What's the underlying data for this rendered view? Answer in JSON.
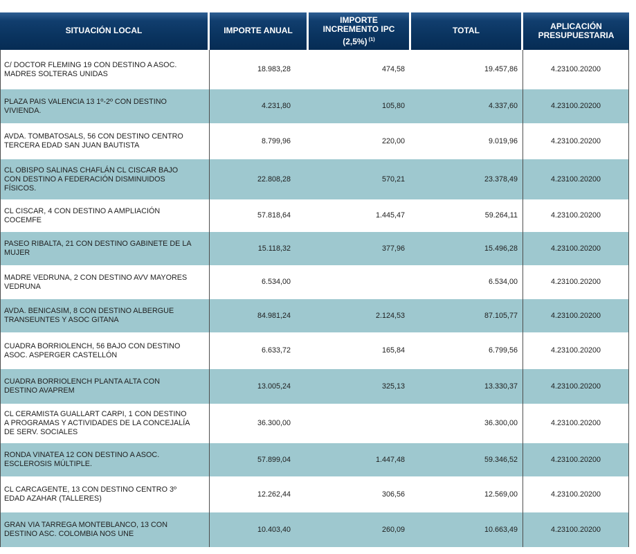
{
  "colors": {
    "header_background": "#0a3460",
    "header_text": "#ffffff",
    "row_alternate_background": "#9ec8cf",
    "row_background": "#ffffff",
    "body_text": "#1e1e1e",
    "grid_line": "#4d4d4d"
  },
  "table": {
    "header": {
      "col1": "SITUACIÓN LOCAL",
      "col2": "IMPORTE ANUAL",
      "col3_line1": "IMPORTE",
      "col3_line2": "INCREMENTO IPC",
      "col3_line3": "(2,5%)",
      "col3_footnote": "(1)",
      "col4": "TOTAL",
      "col5": "APLICACIÓN PRESUPUESTARIA"
    },
    "rows": [
      {
        "situacion": "C/ DOCTOR FLEMING 19 CON DESTINO A  ASOC.\nMADRES SOLTERAS UNIDAS",
        "importe_anual": "18.983,28",
        "incremento_ipc": "474,58",
        "total": "19.457,86",
        "aplicacion": "4.23100.20200"
      },
      {
        "situacion": "PLAZA PAIS VALENCIA 13 1º-2º CON DESTINO\nVIVIENDA.",
        "importe_anual": "4.231,80",
        "incremento_ipc": "105,80",
        "total": "4.337,60",
        "aplicacion": "4.23100.20200"
      },
      {
        "situacion": "AVDA. TOMBATOSALS, 56 CON DESTINO CENTRO\nTERCERA EDAD SAN JUAN BAUTISTA",
        "importe_anual": "8.799,96",
        "incremento_ipc": "220,00",
        "total": "9.019,96",
        "aplicacion": "4.23100.20200"
      },
      {
        "situacion": "CL OBISPO SALINAS CHAFLÁN CL CISCAR BAJO\nCON DESTINO A FEDERACIÓN DISMINUIDOS\nFÍSICOS.",
        "importe_anual": "22.808,28",
        "incremento_ipc": "570,21",
        "total": "23.378,49",
        "aplicacion": "4.23100.20200"
      },
      {
        "situacion": "CL CISCAR, 4 CON DESTINO A AMPLIACIÓN\nCOCEMFE",
        "importe_anual": "57.818,64",
        "incremento_ipc": "1.445,47",
        "total": "59.264,11",
        "aplicacion": "4.23100.20200"
      },
      {
        "situacion": "PASEO RIBALTA, 21 CON DESTINO GABINETE DE LA\nMUJER",
        "importe_anual": "15.118,32",
        "incremento_ipc": "377,96",
        "total": "15.496,28",
        "aplicacion": "4.23100.20200"
      },
      {
        "situacion": "MADRE VEDRUNA, 2 CON DESTINO AVV MAYORES\nVEDRUNA",
        "importe_anual": "6.534,00",
        "incremento_ipc": "",
        "total": "6.534,00",
        "aplicacion": "4.23100.20200"
      },
      {
        "situacion": "AVDA. BENICASIM, 8 CON DESTINO ALBERGUE\nTRANSEUNTES Y ASOC GITANA",
        "importe_anual": "84.981,24",
        "incremento_ipc": "2.124,53",
        "total": "87.105,77",
        "aplicacion": "4.23100.20200"
      },
      {
        "situacion": "CUADRA BORRIOLENCH, 56 BAJO CON DESTINO\nASOC. ASPERGER CASTELLÓN",
        "importe_anual": "6.633,72",
        "incremento_ipc": "165,84",
        "total": "6.799,56",
        "aplicacion": "4.23100.20200"
      },
      {
        "situacion": "CUADRA BORRIOLENCH PLANTA ALTA CON\nDESTINO AVAPREM",
        "importe_anual": "13.005,24",
        "incremento_ipc": "325,13",
        "total": "13.330,37",
        "aplicacion": "4.23100.20200"
      },
      {
        "situacion": "CL CERAMISTA GUALLART CARPI, 1 CON DESTINO\nA PROGRAMAS Y ACTIVIDADES DE LA CONCEJALÍA\nDE SERV. SOCIALES",
        "importe_anual": "36.300,00",
        "incremento_ipc": "",
        "total": "36.300,00",
        "aplicacion": "4.23100.20200"
      },
      {
        "situacion": "RONDA VINATEA 12 CON DESTINO A  ASOC.\nESCLEROSIS MÚLTIPLE.",
        "importe_anual": "57.899,04",
        "incremento_ipc": "1.447,48",
        "total": "59.346,52",
        "aplicacion": "4.23100.20200"
      },
      {
        "situacion": "CL CARCAGENTE, 13 CON DESTINO CENTRO 3º\nEDAD AZAHAR (TALLERES)",
        "importe_anual": "12.262,44",
        "incremento_ipc": "306,56",
        "total": "12.569,00",
        "aplicacion": "4.23100.20200"
      },
      {
        "situacion": "GRAN VIA TARREGA MONTEBLANCO, 13 CON\nDESTINO ASC. COLOMBIA NOS UNE",
        "importe_anual": "10.403,40",
        "incremento_ipc": "260,09",
        "total": "10.663,49",
        "aplicacion": "4.23100.20200"
      }
    ]
  }
}
